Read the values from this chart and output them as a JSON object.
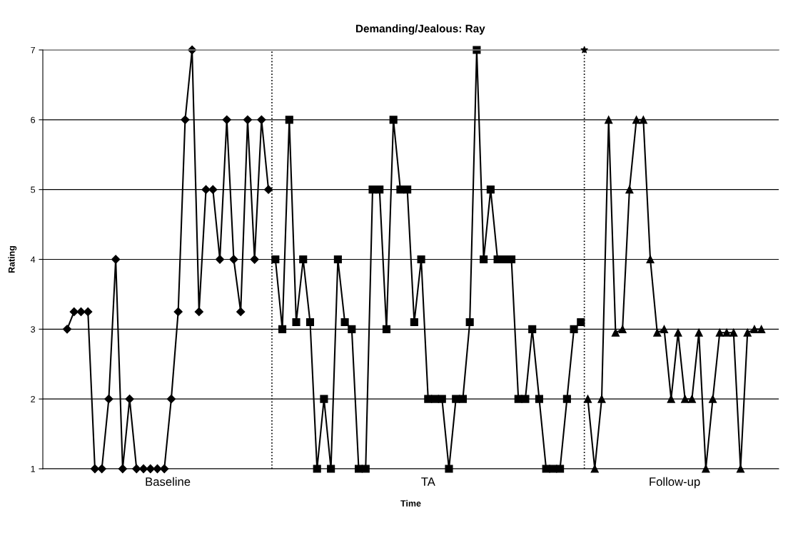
{
  "chart_data": {
    "type": "line",
    "title": "Demanding/Jealous: Ray",
    "xlabel": "Time",
    "ylabel": "Rating",
    "categories": [
      null,
      null,
      null,
      null,
      null,
      null,
      null,
      null,
      null,
      null,
      null,
      null,
      null,
      null,
      null,
      null,
      null,
      null,
      null,
      null,
      null,
      null,
      null,
      null,
      null,
      null,
      null,
      null,
      null,
      null,
      null,
      null,
      null,
      null,
      null,
      null,
      null,
      null,
      null,
      null,
      null,
      null,
      null,
      null,
      null,
      null,
      null,
      null,
      null,
      null,
      null,
      null,
      null,
      null,
      null,
      null,
      null,
      null,
      null,
      null,
      null,
      null,
      null,
      null,
      null,
      null,
      null,
      null,
      null,
      null,
      null,
      null,
      null,
      null,
      null,
      null,
      null,
      null,
      null,
      null,
      null,
      null,
      null,
      null,
      null,
      null,
      null,
      null,
      null,
      null,
      null,
      null,
      null,
      null,
      null,
      null,
      null,
      null,
      null,
      null,
      null,
      null,
      null,
      null,
      null,
      null
    ],
    "series": [
      {
        "color": "#000000",
        "marker": "diamond",
        "values": [
          null,
          null,
          null,
          3,
          3.25,
          3.25,
          3.25,
          1,
          1,
          2,
          4,
          1,
          2,
          1,
          1,
          1,
          1,
          1,
          2,
          3.25,
          6,
          7,
          3.25,
          5,
          5,
          4,
          6,
          4,
          3.25,
          6,
          4,
          6,
          5,
          null,
          null,
          null,
          null,
          null,
          null,
          null,
          null,
          null,
          null,
          null,
          null,
          null,
          null,
          null,
          null,
          null,
          null,
          null,
          null,
          null,
          null,
          null,
          null,
          null,
          null,
          null,
          null,
          null,
          null,
          null,
          null,
          null,
          null,
          null,
          null,
          null,
          null,
          null,
          null,
          null,
          null,
          null,
          null,
          null,
          null,
          null,
          null,
          null,
          null,
          null,
          null,
          null,
          null,
          null,
          null,
          null,
          null,
          null,
          null,
          null,
          null,
          null,
          null,
          null,
          null,
          null,
          null,
          null,
          null,
          null,
          null,
          null
        ]
      },
      {
        "color": "#000000",
        "marker": "square",
        "values": [
          null,
          null,
          null,
          null,
          null,
          null,
          null,
          null,
          null,
          null,
          null,
          null,
          null,
          null,
          null,
          null,
          null,
          null,
          null,
          null,
          null,
          null,
          null,
          null,
          null,
          null,
          null,
          null,
          null,
          null,
          null,
          null,
          null,
          4,
          3,
          6,
          3.1,
          4,
          3.1,
          1,
          2,
          1,
          4,
          3.1,
          3,
          1,
          1,
          5,
          5,
          3,
          6,
          5,
          5,
          3.1,
          4,
          2,
          2,
          2,
          1,
          2,
          2,
          3.1,
          7,
          4,
          5,
          4,
          4,
          4,
          2,
          2,
          3,
          2,
          1,
          1,
          1,
          2,
          3,
          3.1,
          null,
          null,
          null,
          null,
          null,
          null,
          null,
          null,
          null,
          null,
          null,
          null,
          null,
          null,
          null,
          null,
          null,
          null,
          null,
          null,
          null,
          null,
          null,
          null,
          null,
          null,
          null,
          null
        ]
      },
      {
        "color": "#000000",
        "marker": "triangle",
        "values": [
          null,
          null,
          null,
          null,
          null,
          null,
          null,
          null,
          null,
          null,
          null,
          null,
          null,
          null,
          null,
          null,
          null,
          null,
          null,
          null,
          null,
          null,
          null,
          null,
          null,
          null,
          null,
          null,
          null,
          null,
          null,
          null,
          null,
          null,
          null,
          null,
          null,
          null,
          null,
          null,
          null,
          null,
          null,
          null,
          null,
          null,
          null,
          null,
          null,
          null,
          null,
          null,
          null,
          null,
          null,
          null,
          null,
          null,
          null,
          null,
          null,
          null,
          null,
          null,
          null,
          null,
          null,
          null,
          null,
          null,
          null,
          null,
          null,
          null,
          null,
          null,
          null,
          null,
          2,
          1,
          2,
          6,
          2.95,
          3,
          5,
          6,
          6,
          4,
          2.95,
          3,
          2,
          2.95,
          2,
          2,
          2.95,
          1,
          2,
          2.95,
          2.95,
          2.95,
          1,
          2.95,
          3,
          3,
          null,
          null
        ]
      }
    ],
    "ylim": [
      1,
      7
    ],
    "yticks": [
      1,
      2,
      3,
      4,
      5,
      6,
      7
    ],
    "grid": "y",
    "legend": false,
    "annotations": [
      "Baseline",
      "TA",
      "Follow-up"
    ]
  }
}
